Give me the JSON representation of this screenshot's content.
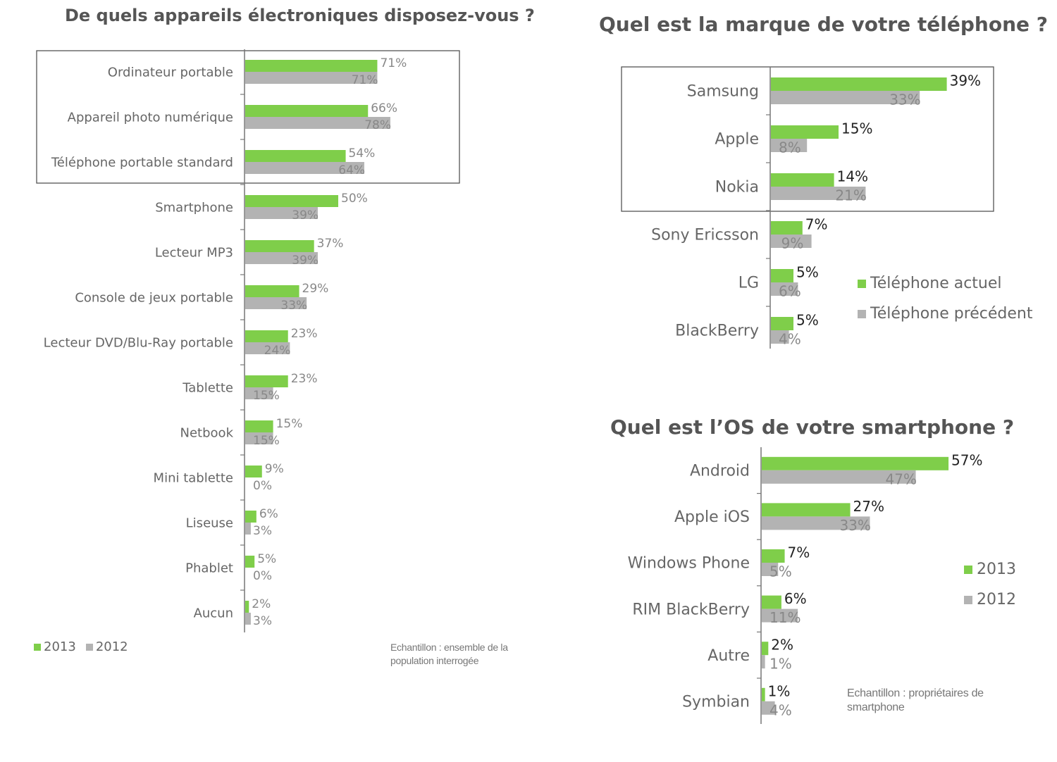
{
  "colors": {
    "current": "#7fce4a",
    "previous": "#b3b3b3",
    "text": "#666666",
    "title": "#555555",
    "frame": "#555555"
  },
  "charts": {
    "devices": {
      "title": "De quels appareils électroniques disposez-vous ?",
      "legend": [
        "2013",
        "2012"
      ],
      "note": "Echantillon : ensemble de la population interrogée"
    },
    "brand": {
      "title": "Quel est la marque de votre téléphone ?",
      "legend": [
        "Téléphone actuel",
        "Téléphone précédent"
      ]
    },
    "os": {
      "title": "Quel est l’OS de votre smartphone ?",
      "legend": [
        "2013",
        "2012"
      ],
      "note": "Echantillon : propriétaires de smartphone"
    }
  },
  "chart_data": [
    {
      "id": "devices",
      "type": "bar",
      "orientation": "horizontal",
      "title": "De quels appareils électroniques disposez-vous ?",
      "categories": [
        "Ordinateur portable",
        "Appareil photo numérique",
        "Téléphone portable standard",
        "Smartphone",
        "Lecteur MP3",
        "Console de jeux portable",
        "Lecteur DVD/Blu-Ray portable",
        "Tablette",
        "Netbook",
        "Mini tablette",
        "Liseuse",
        "Phablet",
        "Aucun"
      ],
      "series": [
        {
          "name": "2013",
          "values": [
            71,
            66,
            54,
            50,
            37,
            29,
            23,
            23,
            15,
            9,
            6,
            5,
            2
          ]
        },
        {
          "name": "2012",
          "values": [
            71,
            78,
            64,
            39,
            39,
            33,
            24,
            15,
            15,
            0,
            3,
            0,
            3
          ]
        }
      ],
      "unit": "%",
      "highlighted_categories": 3,
      "legend_position": "bottom-left"
    },
    {
      "id": "brand",
      "type": "bar",
      "orientation": "horizontal",
      "title": "Quel est la marque de votre téléphone ?",
      "categories": [
        "Samsung",
        "Apple",
        "Nokia",
        "Sony Ericsson",
        "LG",
        "BlackBerry"
      ],
      "series": [
        {
          "name": "Téléphone actuel",
          "values": [
            39,
            15,
            14,
            7,
            5,
            5
          ]
        },
        {
          "name": "Téléphone précédent",
          "values": [
            33,
            8,
            21,
            9,
            6,
            4
          ]
        }
      ],
      "unit": "%",
      "highlighted_categories": 3,
      "legend_position": "right"
    },
    {
      "id": "os",
      "type": "bar",
      "orientation": "horizontal",
      "title": "Quel est l’OS de votre smartphone ?",
      "categories": [
        "Android",
        "Apple iOS",
        "Windows Phone",
        "RIM BlackBerry",
        "Autre",
        "Symbian"
      ],
      "series": [
        {
          "name": "2013",
          "values": [
            57,
            27,
            7,
            6,
            2,
            1
          ]
        },
        {
          "name": "2012",
          "values": [
            47,
            33,
            5,
            11,
            1,
            4
          ]
        }
      ],
      "unit": "%",
      "legend_position": "right"
    }
  ]
}
